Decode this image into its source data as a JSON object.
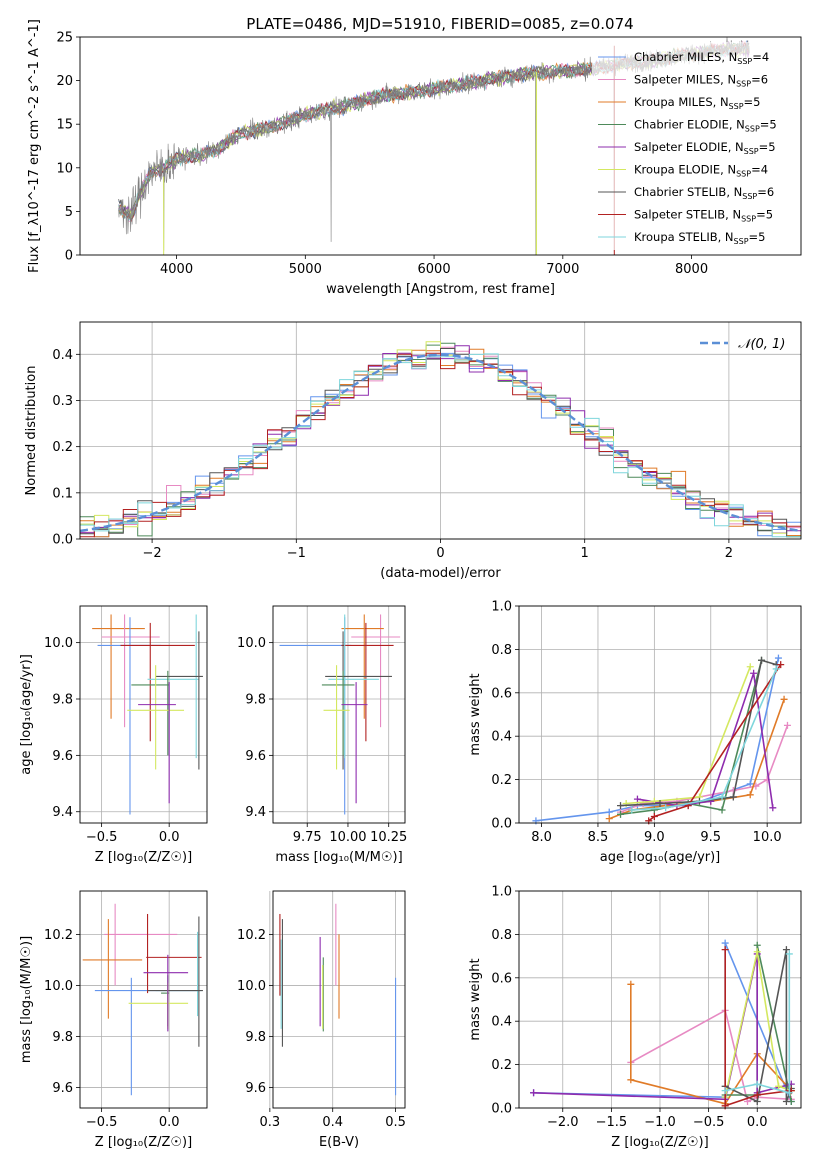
{
  "figure": {
    "title": "PLATE=0486, MJD=51910, FIBERID=0085, z=0.074"
  },
  "colors": {
    "Chabrier MILES": "#6495ed",
    "Salpeter MILES": "#e78ac3",
    "Kroupa MILES": "#e07b28",
    "Chabrier ELODIE": "#4e8a5a",
    "Salpeter ELODIE": "#8e2cae",
    "Kroupa ELODIE": "#d4e860",
    "Chabrier STELIB": "#555555",
    "Salpeter STELIB": "#b22222",
    "Kroupa STELIB": "#7fd6dc",
    "data": "#808080",
    "normal": "#5b8fd6"
  },
  "chart_data": [
    {
      "id": "spectrum",
      "type": "line",
      "xlabel": "wavelength [Angstrom, rest frame]",
      "ylabel": "Flux [f_λ10^-17 erg cm^-2 s^-1 A^-1]",
      "xlim": [
        3250,
        8850
      ],
      "ylim": [
        0,
        25
      ],
      "xticks": [
        4000,
        5000,
        6000,
        7000,
        8000
      ],
      "yticks": [
        0,
        5,
        10,
        15,
        20,
        25
      ],
      "legend_placement": "right",
      "legend": [
        {
          "name": "Chabrier MILES",
          "nssp": "4"
        },
        {
          "name": "Salpeter MILES",
          "nssp": "6"
        },
        {
          "name": "Kroupa MILES",
          "nssp": "5"
        },
        {
          "name": "Chabrier ELODIE",
          "nssp": "5"
        },
        {
          "name": "Salpeter ELODIE",
          "nssp": "5"
        },
        {
          "name": "Kroupa ELODIE",
          "nssp": "4"
        },
        {
          "name": "Chabrier STELIB",
          "nssp": "6"
        },
        {
          "name": "Salpeter STELIB",
          "nssp": "5"
        },
        {
          "name": "Kroupa STELIB",
          "nssp": "5"
        }
      ],
      "continuum": {
        "x": [
          3550,
          3650,
          3700,
          3800,
          3900,
          4000,
          4200,
          4300,
          4500,
          4700,
          4900,
          5100,
          5300,
          5500,
          5700,
          5900,
          6100,
          6300,
          6500,
          6700,
          6900,
          7100,
          7300,
          7500,
          7700,
          7900,
          8100,
          8300,
          8450
        ],
        "y": [
          5.5,
          4.5,
          6.5,
          9.5,
          10.0,
          11.0,
          11.5,
          12.0,
          14.0,
          14.5,
          15.5,
          16.5,
          17.0,
          18.0,
          18.5,
          18.8,
          19.3,
          19.8,
          20.3,
          20.8,
          21.0,
          21.2,
          21.5,
          22.0,
          22.3,
          22.8,
          23.3,
          23.6,
          23.5
        ]
      },
      "spikes": [
        [
          3900,
          0.5
        ],
        [
          5200,
          1.5
        ],
        [
          6790,
          0
        ],
        [
          7400,
          0.3
        ]
      ]
    },
    {
      "id": "residuals",
      "type": "histogram",
      "xlabel": "(data-model)/error",
      "ylabel": "Normed distribution",
      "xlim": [
        -2.5,
        2.5
      ],
      "ylim": [
        0,
        0.47
      ],
      "xticks": [
        -2,
        -1,
        0,
        1,
        2
      ],
      "xticklabels": [
        "−2",
        "−1",
        "0",
        "1",
        "2"
      ],
      "yticks": [
        0,
        0.1,
        0.2,
        0.3,
        0.4
      ],
      "bin_width": 0.1,
      "legend": [
        {
          "label": "𝒩(0, 1)"
        }
      ]
    },
    {
      "id": "age-vs-Z",
      "type": "scatter",
      "xlabel": "Z [log₁₀(Z/Z☉)]",
      "ylabel": "age  [log₁₀(age/yr)]",
      "xlim": [
        -0.66,
        0.28
      ],
      "ylim": [
        9.36,
        10.13
      ],
      "xticks": [
        -0.5,
        0.0
      ],
      "xticklabels": [
        "−0.5",
        "0.0"
      ],
      "yticks": [
        9.4,
        9.6,
        9.8,
        10.0
      ],
      "points": [
        {
          "model": "Kroupa MILES",
          "x": -0.43,
          "xlo": -0.57,
          "xhi": -0.18,
          "y": 10.05,
          "ylo": 9.73,
          "yhi": 10.1
        },
        {
          "model": "Salpeter MILES",
          "x": -0.33,
          "xlo": -0.5,
          "xhi": -0.07,
          "y": 10.02,
          "ylo": 9.7,
          "yhi": 10.1
        },
        {
          "model": "Chabrier MILES",
          "x": -0.29,
          "xlo": -0.53,
          "xhi": -0.06,
          "y": 9.99,
          "ylo": 9.39,
          "yhi": 10.09
        },
        {
          "model": "Salpeter STELIB",
          "x": -0.14,
          "xlo": -0.36,
          "xhi": 0.19,
          "y": 9.99,
          "ylo": 9.65,
          "yhi": 10.07
        },
        {
          "model": "Kroupa STELIB",
          "x": 0.2,
          "xlo": -0.16,
          "xhi": 0.22,
          "y": 9.87,
          "ylo": 9.59,
          "yhi": 10.1
        },
        {
          "model": "Chabrier STELIB",
          "x": 0.22,
          "xlo": -0.1,
          "xhi": 0.25,
          "y": 9.88,
          "ylo": 9.55,
          "yhi": 10.04
        },
        {
          "model": "Chabrier ELODIE",
          "x": -0.01,
          "xlo": -0.28,
          "xhi": 0.0,
          "y": 9.85,
          "ylo": 9.6,
          "yhi": 9.9
        },
        {
          "model": "Kroupa ELODIE",
          "x": -0.1,
          "xlo": -0.31,
          "xhi": 0.11,
          "y": 9.76,
          "ylo": 9.55,
          "yhi": 9.92
        },
        {
          "model": "Salpeter ELODIE",
          "x": 0.0,
          "xlo": -0.23,
          "xhi": 0.05,
          "y": 9.78,
          "ylo": 9.43,
          "yhi": 9.86
        }
      ]
    },
    {
      "id": "age-vs-mass",
      "type": "scatter",
      "xlabel": "mass [log₁₀(M/M☉)]",
      "ylabel": "",
      "xlim": [
        9.54,
        10.35
      ],
      "ylim": [
        9.36,
        10.13
      ],
      "xticks": [
        9.75,
        10.0,
        10.25
      ],
      "xticklabels": [
        "9.75",
        "10.00",
        "10.25"
      ],
      "yticks": [
        9.4,
        9.6,
        9.8,
        10.0
      ],
      "points": [
        {
          "model": "Salpeter MILES",
          "x": 10.2,
          "xlo": 10.02,
          "xhi": 10.32,
          "y": 10.02,
          "ylo": 9.7,
          "yhi": 10.1
        },
        {
          "model": "Kroupa MILES",
          "x": 10.1,
          "xlo": 9.96,
          "xhi": 10.22,
          "y": 10.05,
          "ylo": 9.73,
          "yhi": 10.1
        },
        {
          "model": "Chabrier MILES",
          "x": 9.98,
          "xlo": 9.58,
          "xhi": 10.02,
          "y": 9.99,
          "ylo": 9.39,
          "yhi": 10.09
        },
        {
          "model": "Salpeter STELIB",
          "x": 10.11,
          "xlo": 9.96,
          "xhi": 10.28,
          "y": 9.99,
          "ylo": 9.65,
          "yhi": 10.07
        },
        {
          "model": "Kroupa STELIB",
          "x": 9.98,
          "xlo": 9.88,
          "xhi": 10.19,
          "y": 9.87,
          "ylo": 9.59,
          "yhi": 10.1
        },
        {
          "model": "Chabrier STELIB",
          "x": 9.97,
          "xlo": 9.86,
          "xhi": 10.27,
          "y": 9.88,
          "ylo": 9.55,
          "yhi": 10.04
        },
        {
          "model": "Chabrier ELODIE",
          "x": 9.97,
          "xlo": 9.84,
          "xhi": 10.04,
          "y": 9.85,
          "ylo": 9.6,
          "yhi": 9.9
        },
        {
          "model": "Kroupa ELODIE",
          "x": 9.93,
          "xlo": 9.85,
          "xhi": 10.01,
          "y": 9.76,
          "ylo": 9.55,
          "yhi": 9.92
        },
        {
          "model": "Salpeter ELODIE",
          "x": 10.05,
          "xlo": 9.96,
          "xhi": 10.12,
          "y": 9.78,
          "ylo": 9.43,
          "yhi": 9.86
        }
      ]
    },
    {
      "id": "massweight-vs-age",
      "type": "line",
      "xlabel": "age  [log₁₀(age/yr)]",
      "ylabel": "mass weight",
      "xlim": [
        7.8,
        10.3
      ],
      "ylim": [
        0,
        1.0
      ],
      "xticks": [
        8.0,
        8.5,
        9.0,
        9.5,
        10.0
      ],
      "xticklabels": [
        "8.0",
        "8.5",
        "9.0",
        "9.5",
        "10.0"
      ],
      "yticks": [
        0.0,
        0.2,
        0.4,
        0.6,
        0.8,
        1.0
      ],
      "series": [
        {
          "model": "Chabrier MILES",
          "x": [
            7.95,
            8.6,
            8.85,
            9.3,
            9.85,
            10.1
          ],
          "y": [
            0.01,
            0.05,
            0.08,
            0.08,
            0.18,
            0.76
          ]
        },
        {
          "model": "Salpeter MILES",
          "x": [
            8.7,
            8.9,
            9.2,
            9.7,
            9.9,
            10.0,
            10.18
          ],
          "y": [
            0.05,
            0.09,
            0.1,
            0.15,
            0.17,
            0.2,
            0.45
          ]
        },
        {
          "model": "Kroupa MILES",
          "x": [
            8.6,
            8.8,
            9.1,
            9.5,
            9.85,
            10.15
          ],
          "y": [
            0.02,
            0.06,
            0.08,
            0.1,
            0.13,
            0.57
          ]
        },
        {
          "model": "Chabrier ELODIE",
          "x": [
            8.7,
            9.0,
            9.3,
            9.6,
            9.95
          ],
          "y": [
            0.04,
            0.06,
            0.09,
            0.06,
            0.75
          ]
        },
        {
          "model": "Salpeter ELODIE",
          "x": [
            8.85,
            9.2,
            9.5,
            9.88,
            10.05
          ],
          "y": [
            0.11,
            0.08,
            0.1,
            0.69,
            0.07
          ]
        },
        {
          "model": "Kroupa ELODIE",
          "x": [
            8.75,
            9.0,
            9.4,
            9.85
          ],
          "y": [
            0.09,
            0.1,
            0.12,
            0.72
          ]
        },
        {
          "model": "Chabrier STELIB",
          "x": [
            8.7,
            9.05,
            9.4,
            9.7,
            9.95,
            10.08
          ],
          "y": [
            0.08,
            0.09,
            0.1,
            0.12,
            0.75,
            0.73
          ]
        },
        {
          "model": "Salpeter STELIB",
          "x": [
            8.95,
            9.0,
            9.3,
            10.12
          ],
          "y": [
            0.01,
            0.03,
            0.08,
            0.73
          ]
        },
        {
          "model": "Kroupa STELIB",
          "x": [
            8.8,
            9.1,
            9.6,
            10.08
          ],
          "y": [
            0.06,
            0.07,
            0.12,
            0.71
          ]
        }
      ]
    },
    {
      "id": "mass-vs-Z",
      "type": "scatter",
      "xlabel": "Z [log₁₀(Z/Z☉)]",
      "ylabel": "mass [log₁₀(M/M☉)]",
      "xlim": [
        -0.66,
        0.28
      ],
      "ylim": [
        9.52,
        10.37
      ],
      "xticks": [
        -0.5,
        0.0
      ],
      "xticklabels": [
        "−0.5",
        "0.0"
      ],
      "yticks": [
        9.6,
        9.8,
        10.0,
        10.2
      ],
      "points": [
        {
          "model": "Salpeter MILES",
          "x": -0.4,
          "xlo": -0.48,
          "xhi": 0.06,
          "y": 10.2,
          "ylo": 10.0,
          "yhi": 10.32
        },
        {
          "model": "Kroupa MILES",
          "x": -0.45,
          "xlo": -0.64,
          "xhi": -0.2,
          "y": 10.1,
          "ylo": 9.87,
          "yhi": 10.26
        },
        {
          "model": "Chabrier MILES",
          "x": -0.28,
          "xlo": -0.55,
          "xhi": 0.22,
          "y": 9.98,
          "ylo": 9.57,
          "yhi": 10.03
        },
        {
          "model": "Salpeter STELIB",
          "x": -0.16,
          "xlo": -0.17,
          "xhi": 0.24,
          "y": 10.11,
          "ylo": 9.97,
          "yhi": 10.28
        },
        {
          "model": "Kroupa STELIB",
          "x": 0.21,
          "xlo": -0.1,
          "xhi": 0.24,
          "y": 9.98,
          "ylo": 9.88,
          "yhi": 10.21
        },
        {
          "model": "Chabrier STELIB",
          "x": 0.22,
          "xlo": -0.16,
          "xhi": 0.25,
          "y": 9.98,
          "ylo": 9.76,
          "yhi": 10.27
        },
        {
          "model": "Chabrier ELODIE",
          "x": -0.01,
          "xlo": -0.06,
          "xhi": 0.0,
          "y": 9.97,
          "ylo": 9.84,
          "yhi": 10.04
        },
        {
          "model": "Kroupa ELODIE",
          "x": -0.01,
          "xlo": -0.3,
          "xhi": 0.14,
          "y": 9.93,
          "ylo": 9.83,
          "yhi": 10.01
        },
        {
          "model": "Salpeter ELODIE",
          "x": -0.01,
          "xlo": -0.19,
          "xhi": 0.14,
          "y": 10.05,
          "ylo": 9.82,
          "yhi": 10.12
        }
      ]
    },
    {
      "id": "mass-vs-EBV",
      "type": "scatter",
      "xlabel": "E(B-V)",
      "ylabel": "",
      "xlim": [
        0.305,
        0.515
      ],
      "ylim": [
        9.52,
        10.37
      ],
      "xticks": [
        0.3,
        0.4,
        0.5
      ],
      "xticklabels": [
        "0.3",
        "0.4",
        "0.5"
      ],
      "yticks": [
        9.6,
        9.8,
        10.0,
        10.2
      ],
      "points": [
        {
          "model": "Chabrier STELIB",
          "x": 0.32,
          "y": 9.98,
          "ylo": 9.76,
          "yhi": 10.26
        },
        {
          "model": "Salpeter STELIB",
          "x": 0.316,
          "y": 10.1,
          "ylo": 9.96,
          "yhi": 10.28
        },
        {
          "model": "Kroupa STELIB",
          "x": 0.318,
          "y": 10.0,
          "ylo": 9.83,
          "yhi": 10.18
        },
        {
          "model": "Salpeter ELODIE",
          "x": 0.38,
          "y": 10.04,
          "ylo": 9.84,
          "yhi": 10.19
        },
        {
          "model": "Chabrier ELODIE",
          "x": 0.385,
          "y": 9.98,
          "ylo": 9.82,
          "yhi": 10.11
        },
        {
          "model": "Kroupa ELODIE",
          "x": 0.384,
          "y": 9.93,
          "ylo": 9.83,
          "yhi": 10.08
        },
        {
          "model": "Salpeter MILES",
          "x": 0.405,
          "y": 10.2,
          "ylo": 10.0,
          "yhi": 10.32
        },
        {
          "model": "Kroupa MILES",
          "x": 0.41,
          "y": 10.1,
          "ylo": 9.87,
          "yhi": 10.2
        },
        {
          "model": "Chabrier MILES",
          "x": 0.5,
          "y": 9.98,
          "ylo": 9.57,
          "yhi": 10.03
        }
      ]
    },
    {
      "id": "massweight-vs-Z",
      "type": "line",
      "xlabel": "Z [log₁₀(Z/Z☉)]",
      "ylabel": "mass weight",
      "xlim": [
        -2.45,
        0.45
      ],
      "ylim": [
        0,
        1.0
      ],
      "xticks": [
        -2.0,
        -1.5,
        -1.0,
        -0.5,
        0.0
      ],
      "xticklabels": [
        "−2.0",
        "−1.5",
        "−1.0",
        "−0.5",
        "0.0"
      ],
      "yticks": [
        0.0,
        0.2,
        0.4,
        0.6,
        0.8,
        1.0
      ],
      "series": [
        {
          "model": "Chabrier MILES",
          "x": [
            -2.3,
            -0.33,
            -0.33,
            0.35
          ],
          "y": [
            0.07,
            0.05,
            0.76,
            0.03
          ]
        },
        {
          "model": "Salpeter MILES",
          "x": [
            -1.3,
            -0.33,
            -0.1,
            0.0,
            0.35
          ],
          "y": [
            0.21,
            0.45,
            0.03,
            0.05,
            0.04
          ]
        },
        {
          "model": "Kroupa MILES",
          "x": [
            -1.3,
            -1.3,
            -0.33,
            0.0,
            0.35
          ],
          "y": [
            0.57,
            0.13,
            0.02,
            0.25,
            0.08
          ]
        },
        {
          "model": "Chabrier ELODIE",
          "x": [
            -0.33,
            0.0,
            0.0,
            0.35
          ],
          "y": [
            0.06,
            0.06,
            0.75,
            0.03
          ]
        },
        {
          "model": "Salpeter ELODIE",
          "x": [
            -2.3,
            -0.33,
            0.0,
            0.0,
            0.35
          ],
          "y": [
            0.07,
            0.04,
            0.71,
            0.07,
            0.11
          ]
        },
        {
          "model": "Kroupa ELODIE",
          "x": [
            -0.33,
            0.0,
            0.22,
            0.35
          ],
          "y": [
            0.05,
            0.72,
            0.1,
            0.08
          ]
        },
        {
          "model": "Chabrier STELIB",
          "x": [
            -0.33,
            0.0,
            0.3,
            0.3,
            0.35
          ],
          "y": [
            0.1,
            0.03,
            0.73,
            0.03,
            0.09
          ]
        },
        {
          "model": "Salpeter STELIB",
          "x": [
            -0.33,
            -0.33,
            0.0,
            0.35
          ],
          "y": [
            0.73,
            0.01,
            0.06,
            0.08
          ]
        },
        {
          "model": "Kroupa STELIB",
          "x": [
            -0.33,
            0.0,
            0.33,
            0.33
          ],
          "y": [
            0.08,
            0.11,
            0.07,
            0.71
          ]
        }
      ]
    }
  ]
}
